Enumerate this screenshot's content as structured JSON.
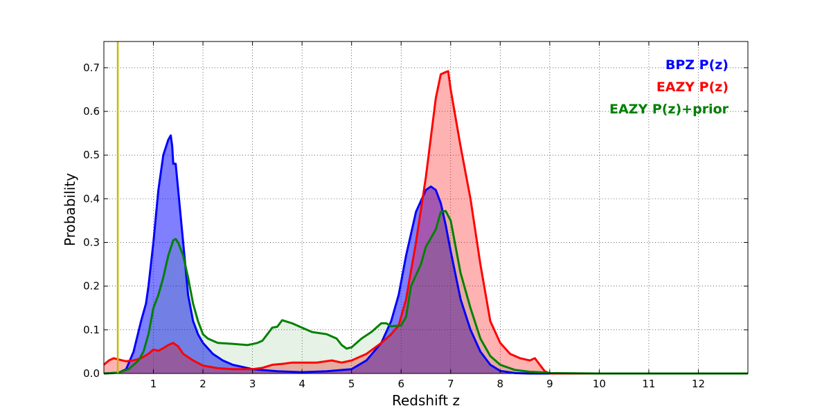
{
  "chart_data": {
    "type": "area",
    "xlabel": "Redshift z",
    "ylabel": "Probability",
    "xlim": [
      0,
      13
    ],
    "ylim": [
      0,
      0.76
    ],
    "x_ticks": [
      1,
      2,
      3,
      4,
      5,
      6,
      7,
      8,
      9,
      10,
      11,
      12
    ],
    "y_ticks": [
      0.0,
      0.1,
      0.2,
      0.3,
      0.4,
      0.5,
      0.6,
      0.7
    ],
    "grid": true,
    "legend_position": "top-right",
    "vertical_line": {
      "x": 0.28,
      "color": "#bfbf00"
    },
    "series": [
      {
        "name": "BPZ P(z)",
        "color": "#0000ff",
        "fill": "#0000ff",
        "fill_opacity": 0.5,
        "points": [
          [
            0,
            0
          ],
          [
            0.3,
            0.002
          ],
          [
            0.45,
            0.01
          ],
          [
            0.6,
            0.05
          ],
          [
            0.75,
            0.12
          ],
          [
            0.85,
            0.16
          ],
          [
            0.9,
            0.2
          ],
          [
            1.0,
            0.3
          ],
          [
            1.1,
            0.42
          ],
          [
            1.2,
            0.5
          ],
          [
            1.3,
            0.535
          ],
          [
            1.35,
            0.545
          ],
          [
            1.38,
            0.52
          ],
          [
            1.4,
            0.48
          ],
          [
            1.45,
            0.48
          ],
          [
            1.5,
            0.42
          ],
          [
            1.6,
            0.3
          ],
          [
            1.7,
            0.18
          ],
          [
            1.8,
            0.12
          ],
          [
            1.9,
            0.09
          ],
          [
            2.0,
            0.07
          ],
          [
            2.2,
            0.045
          ],
          [
            2.4,
            0.03
          ],
          [
            2.6,
            0.02
          ],
          [
            3.0,
            0.01
          ],
          [
            3.5,
            0.005
          ],
          [
            4.0,
            0.003
          ],
          [
            4.5,
            0.005
          ],
          [
            5.0,
            0.01
          ],
          [
            5.3,
            0.03
          ],
          [
            5.6,
            0.07
          ],
          [
            5.8,
            0.12
          ],
          [
            5.95,
            0.18
          ],
          [
            6.1,
            0.27
          ],
          [
            6.3,
            0.37
          ],
          [
            6.5,
            0.42
          ],
          [
            6.6,
            0.428
          ],
          [
            6.7,
            0.42
          ],
          [
            6.8,
            0.39
          ],
          [
            6.9,
            0.34
          ],
          [
            7.0,
            0.28
          ],
          [
            7.2,
            0.17
          ],
          [
            7.4,
            0.1
          ],
          [
            7.6,
            0.05
          ],
          [
            7.8,
            0.02
          ],
          [
            8.0,
            0.006
          ],
          [
            8.3,
            0.001
          ],
          [
            8.6,
            0
          ],
          [
            9,
            0
          ],
          [
            13,
            0
          ]
        ]
      },
      {
        "name": "EAZY P(z)",
        "color": "#ff0000",
        "fill": "#ff0000",
        "fill_opacity": 0.3,
        "points": [
          [
            0,
            0.02
          ],
          [
            0.1,
            0.03
          ],
          [
            0.2,
            0.035
          ],
          [
            0.3,
            0.032
          ],
          [
            0.45,
            0.028
          ],
          [
            0.6,
            0.03
          ],
          [
            0.75,
            0.035
          ],
          [
            0.9,
            0.045
          ],
          [
            1.0,
            0.055
          ],
          [
            1.1,
            0.052
          ],
          [
            1.2,
            0.058
          ],
          [
            1.3,
            0.065
          ],
          [
            1.4,
            0.07
          ],
          [
            1.5,
            0.062
          ],
          [
            1.6,
            0.045
          ],
          [
            1.8,
            0.03
          ],
          [
            2.0,
            0.018
          ],
          [
            2.3,
            0.012
          ],
          [
            2.6,
            0.01
          ],
          [
            3.0,
            0.01
          ],
          [
            3.2,
            0.013
          ],
          [
            3.4,
            0.02
          ],
          [
            3.6,
            0.022
          ],
          [
            3.8,
            0.025
          ],
          [
            4.0,
            0.025
          ],
          [
            4.3,
            0.025
          ],
          [
            4.6,
            0.03
          ],
          [
            4.8,
            0.025
          ],
          [
            5.0,
            0.03
          ],
          [
            5.3,
            0.045
          ],
          [
            5.6,
            0.07
          ],
          [
            5.8,
            0.09
          ],
          [
            5.95,
            0.11
          ],
          [
            6.1,
            0.17
          ],
          [
            6.3,
            0.3
          ],
          [
            6.5,
            0.45
          ],
          [
            6.7,
            0.63
          ],
          [
            6.8,
            0.685
          ],
          [
            6.9,
            0.69
          ],
          [
            6.95,
            0.692
          ],
          [
            7.0,
            0.65
          ],
          [
            7.2,
            0.52
          ],
          [
            7.4,
            0.4
          ],
          [
            7.6,
            0.25
          ],
          [
            7.8,
            0.12
          ],
          [
            8.0,
            0.07
          ],
          [
            8.2,
            0.045
          ],
          [
            8.4,
            0.035
          ],
          [
            8.6,
            0.03
          ],
          [
            8.7,
            0.035
          ],
          [
            8.8,
            0.02
          ],
          [
            8.9,
            0.005
          ],
          [
            9.0,
            0
          ],
          [
            13,
            0
          ]
        ]
      },
      {
        "name": "EAZY P(z)+prior",
        "color": "#008000",
        "fill": "#008000",
        "fill_opacity": 0.1,
        "points": [
          [
            0,
            0
          ],
          [
            0.3,
            0.002
          ],
          [
            0.5,
            0.01
          ],
          [
            0.7,
            0.03
          ],
          [
            0.8,
            0.05
          ],
          [
            0.9,
            0.09
          ],
          [
            1.0,
            0.15
          ],
          [
            1.1,
            0.18
          ],
          [
            1.2,
            0.22
          ],
          [
            1.3,
            0.27
          ],
          [
            1.4,
            0.305
          ],
          [
            1.45,
            0.308
          ],
          [
            1.5,
            0.3
          ],
          [
            1.6,
            0.27
          ],
          [
            1.7,
            0.22
          ],
          [
            1.8,
            0.16
          ],
          [
            1.9,
            0.12
          ],
          [
            2.0,
            0.09
          ],
          [
            2.1,
            0.08
          ],
          [
            2.3,
            0.07
          ],
          [
            2.6,
            0.068
          ],
          [
            2.9,
            0.065
          ],
          [
            3.1,
            0.07
          ],
          [
            3.2,
            0.075
          ],
          [
            3.3,
            0.09
          ],
          [
            3.4,
            0.105
          ],
          [
            3.5,
            0.107
          ],
          [
            3.6,
            0.122
          ],
          [
            3.8,
            0.115
          ],
          [
            4.0,
            0.105
          ],
          [
            4.2,
            0.095
          ],
          [
            4.5,
            0.09
          ],
          [
            4.7,
            0.08
          ],
          [
            4.8,
            0.065
          ],
          [
            4.9,
            0.057
          ],
          [
            5.0,
            0.06
          ],
          [
            5.2,
            0.08
          ],
          [
            5.4,
            0.095
          ],
          [
            5.6,
            0.115
          ],
          [
            5.7,
            0.115
          ],
          [
            5.8,
            0.108
          ],
          [
            6.0,
            0.11
          ],
          [
            6.1,
            0.13
          ],
          [
            6.2,
            0.2
          ],
          [
            6.4,
            0.25
          ],
          [
            6.5,
            0.29
          ],
          [
            6.6,
            0.31
          ],
          [
            6.7,
            0.33
          ],
          [
            6.8,
            0.37
          ],
          [
            6.9,
            0.372
          ],
          [
            7.0,
            0.35
          ],
          [
            7.2,
            0.23
          ],
          [
            7.4,
            0.15
          ],
          [
            7.6,
            0.08
          ],
          [
            7.8,
            0.04
          ],
          [
            8.0,
            0.02
          ],
          [
            8.3,
            0.008
          ],
          [
            8.6,
            0.004
          ],
          [
            8.8,
            0.003
          ],
          [
            9.0,
            0.001
          ],
          [
            10,
            0
          ],
          [
            13,
            0
          ]
        ]
      }
    ]
  }
}
